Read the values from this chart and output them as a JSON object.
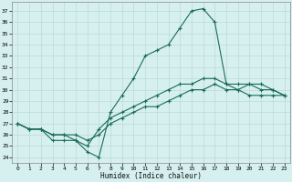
{
  "xlabel": "Humidex (Indice chaleur)",
  "bg_color": "#d6f0f0",
  "grid_color": "#bdd8d8",
  "line_color": "#1a6b5a",
  "xlim": [
    -0.5,
    23.5
  ],
  "ylim": [
    23.5,
    37.8
  ],
  "yticks": [
    24,
    25,
    26,
    27,
    28,
    29,
    30,
    31,
    32,
    33,
    34,
    35,
    36,
    37
  ],
  "xticks": [
    0,
    1,
    2,
    3,
    4,
    5,
    6,
    7,
    8,
    9,
    10,
    11,
    12,
    13,
    14,
    15,
    16,
    17,
    18,
    19,
    20,
    21,
    22,
    23
  ],
  "line1_x": [
    0,
    1,
    2,
    3,
    4,
    5,
    6,
    7,
    8,
    9,
    10,
    11,
    12,
    13,
    14,
    15,
    16,
    17,
    18,
    19,
    20,
    21,
    22,
    23
  ],
  "line1_y": [
    27.0,
    26.5,
    26.5,
    26.0,
    26.0,
    25.5,
    24.5,
    24.0,
    28.0,
    29.5,
    31.0,
    33.0,
    33.5,
    34.0,
    35.5,
    37.0,
    37.2,
    36.0,
    30.5,
    30.0,
    30.5,
    30.0,
    30.0,
    29.5
  ],
  "line2_x": [
    0,
    1,
    2,
    3,
    4,
    5,
    6,
    7,
    8,
    9,
    10,
    11,
    12,
    13,
    14,
    15,
    16,
    17,
    18,
    19,
    20,
    21,
    22,
    23
  ],
  "line2_y": [
    27.0,
    26.5,
    26.5,
    25.5,
    25.5,
    25.5,
    25.0,
    26.5,
    27.5,
    28.0,
    28.5,
    29.0,
    29.5,
    30.0,
    30.5,
    30.5,
    31.0,
    31.0,
    30.5,
    30.5,
    30.5,
    30.5,
    30.0,
    29.5
  ],
  "line3_x": [
    0,
    1,
    2,
    3,
    4,
    5,
    6,
    7,
    8,
    9,
    10,
    11,
    12,
    13,
    14,
    15,
    16,
    17,
    18,
    19,
    20,
    21,
    22,
    23
  ],
  "line3_y": [
    27.0,
    26.5,
    26.5,
    26.0,
    26.0,
    26.0,
    25.5,
    26.0,
    27.0,
    27.5,
    28.0,
    28.5,
    28.5,
    29.0,
    29.5,
    30.0,
    30.0,
    30.5,
    30.0,
    30.0,
    29.5,
    29.5,
    29.5,
    29.5
  ]
}
